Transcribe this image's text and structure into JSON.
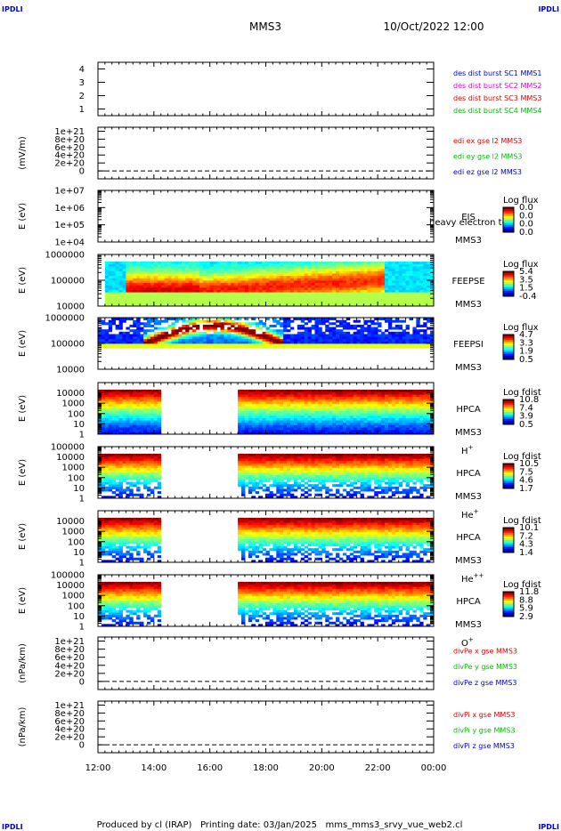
{
  "header": {
    "corner_left": "IPDLI",
    "corner_right": "IPDLI",
    "spacecraft": "MMS3",
    "datetime": "10/Oct/2022 12:00"
  },
  "footer": {
    "corner_left": "IPDLI",
    "corner_right": "IPDLI",
    "credit": "Produced by cl (IRAP)   Printing date: 03/Jan/2025   mms_mms3_srvy_vue_web2.cl"
  },
  "colors": {
    "blue": "#0000cc",
    "magenta": "#dd00dd",
    "red": "#dd0000",
    "green": "#00bb00",
    "black": "#000000"
  },
  "time_axis": {
    "start_hour": 12,
    "end_hour": 24,
    "tick_labels": [
      "12:00",
      "14:00",
      "16:00",
      "18:00",
      "20:00",
      "22:00",
      "00:00"
    ]
  },
  "chart_data": [
    {
      "id": "burst",
      "type": "line",
      "ylabel": "",
      "ylim": [
        0.5,
        4.5
      ],
      "yticks": [
        "1",
        "2",
        "3",
        "4"
      ],
      "legend": [
        {
          "text": "des dist burst SC1 MMS1",
          "color": "blue"
        },
        {
          "text": "des dist burst SC2 MMS2",
          "color": "magenta"
        },
        {
          "text": "des dist burst SC3 MMS3",
          "color": "red"
        },
        {
          "text": "des dist burst SC4 MMS4",
          "color": "green"
        }
      ]
    },
    {
      "id": "edi",
      "type": "line",
      "ylabel": "(mV/m)",
      "ylim": [
        -2e+20,
        1.1e+21
      ],
      "yticks": [
        "0",
        "2e+20",
        "4e+20",
        "6e+20",
        "8e+20",
        "1e+21"
      ],
      "legend": [
        {
          "text": "edi ex gse l2 MMS3",
          "color": "red"
        },
        {
          "text": "edi ey gse l2 MMS3",
          "color": "green"
        },
        {
          "text": "edi ez gse l2 MMS3",
          "color": "blue"
        }
      ]
    },
    {
      "id": "eis",
      "type": "heatmap",
      "ylabel": "E (eV)",
      "ylim": [
        10000,
        10000000
      ],
      "yticks": [
        "1e+04",
        "1e+05",
        "1e+06",
        "1e+07"
      ],
      "instrument": "EIS",
      "instrument_sub": "MMS3",
      "overlay": "heavy electron to",
      "cbar_title": "Log flux",
      "cbar_labels": [
        "0.0",
        "0.0",
        "0.0",
        "0.0"
      ]
    },
    {
      "id": "feepse",
      "type": "heatmap",
      "ylabel": "E (eV)",
      "ylim": [
        10000,
        1000000
      ],
      "yticks": [
        "10000",
        "100000",
        "1000000"
      ],
      "instrument": "FEEPSE",
      "instrument_sub": "MMS3",
      "cbar_title": "Log flux",
      "cbar_labels": [
        "5.4",
        "3.5",
        "1.5",
        "-0.4"
      ]
    },
    {
      "id": "feepsi",
      "type": "heatmap",
      "ylabel": "E (eV)",
      "ylim": [
        10000,
        1000000
      ],
      "yticks": [
        "10000",
        "100000",
        "1000000"
      ],
      "instrument": "FEEPSI",
      "instrument_sub": "MMS3",
      "cbar_title": "Log flux",
      "cbar_labels": [
        "4.7",
        "3.3",
        "1.9",
        "0.5"
      ]
    },
    {
      "id": "hpca_h",
      "type": "heatmap",
      "ylabel": "E (eV)",
      "ylim": [
        1,
        100000
      ],
      "yticks": [
        "1",
        "10",
        "100",
        "1000",
        "10000"
      ],
      "instrument": "HPCA",
      "instrument_sub": "MMS3",
      "species": "H",
      "species_sup": "+",
      "cbar_title": "Log fdist",
      "cbar_labels": [
        "10.8",
        "7.4",
        "3.9",
        "0.5"
      ]
    },
    {
      "id": "hpca_he",
      "type": "heatmap",
      "ylabel": "E (eV)",
      "ylim": [
        1,
        100000
      ],
      "yticks": [
        "1",
        "10",
        "100",
        "1000",
        "10000",
        "100000"
      ],
      "instrument": "HPCA",
      "instrument_sub": "MMS3",
      "species": "He",
      "species_sup": "+",
      "cbar_title": "Log fdist",
      "cbar_labels": [
        "10.5",
        "7.5",
        "4.6",
        "1.7"
      ]
    },
    {
      "id": "hpca_hepp",
      "type": "heatmap",
      "ylabel": "E (eV)",
      "ylim": [
        1,
        100000
      ],
      "yticks": [
        "1",
        "10",
        "100",
        "1000",
        "10000"
      ],
      "instrument": "HPCA",
      "instrument_sub": "MMS3",
      "species": "He",
      "species_sup": "++",
      "cbar_title": "Log fdist",
      "cbar_labels": [
        "10.1",
        "7.2",
        "4.3",
        "1.4"
      ]
    },
    {
      "id": "hpca_o",
      "type": "heatmap",
      "ylabel": "E (eV)",
      "ylim": [
        1,
        100000
      ],
      "yticks": [
        "1",
        "10",
        "100",
        "1000",
        "10000",
        "100000"
      ],
      "instrument": "HPCA",
      "instrument_sub": "MMS3",
      "species": "O",
      "species_sup": "+",
      "cbar_title": "Log fdist",
      "cbar_labels": [
        "11.8",
        "8.8",
        "5.9",
        "2.9"
      ]
    },
    {
      "id": "divpe",
      "type": "line",
      "ylabel": "(nPa/km)",
      "ylim": [
        -2e+20,
        1.1e+21
      ],
      "yticks": [
        "0",
        "2e+20",
        "4e+20",
        "6e+20",
        "8e+20",
        "1e+21"
      ],
      "legend": [
        {
          "text": "divPe x gse MMS3",
          "color": "red"
        },
        {
          "text": "divPe y gse MMS3",
          "color": "green"
        },
        {
          "text": "divPe z gse MMS3",
          "color": "blue"
        }
      ]
    },
    {
      "id": "divpi",
      "type": "line",
      "ylabel": "(nPa/km)",
      "ylim": [
        -2e+20,
        1.1e+21
      ],
      "yticks": [
        "0",
        "2e+20",
        "4e+20",
        "6e+20",
        "8e+20",
        "1e+21"
      ],
      "legend": [
        {
          "text": "divPi x gse MMS3",
          "color": "red"
        },
        {
          "text": "divPi y gse MMS3",
          "color": "green"
        },
        {
          "text": "divPi z gse MMS3",
          "color": "blue"
        }
      ]
    }
  ]
}
